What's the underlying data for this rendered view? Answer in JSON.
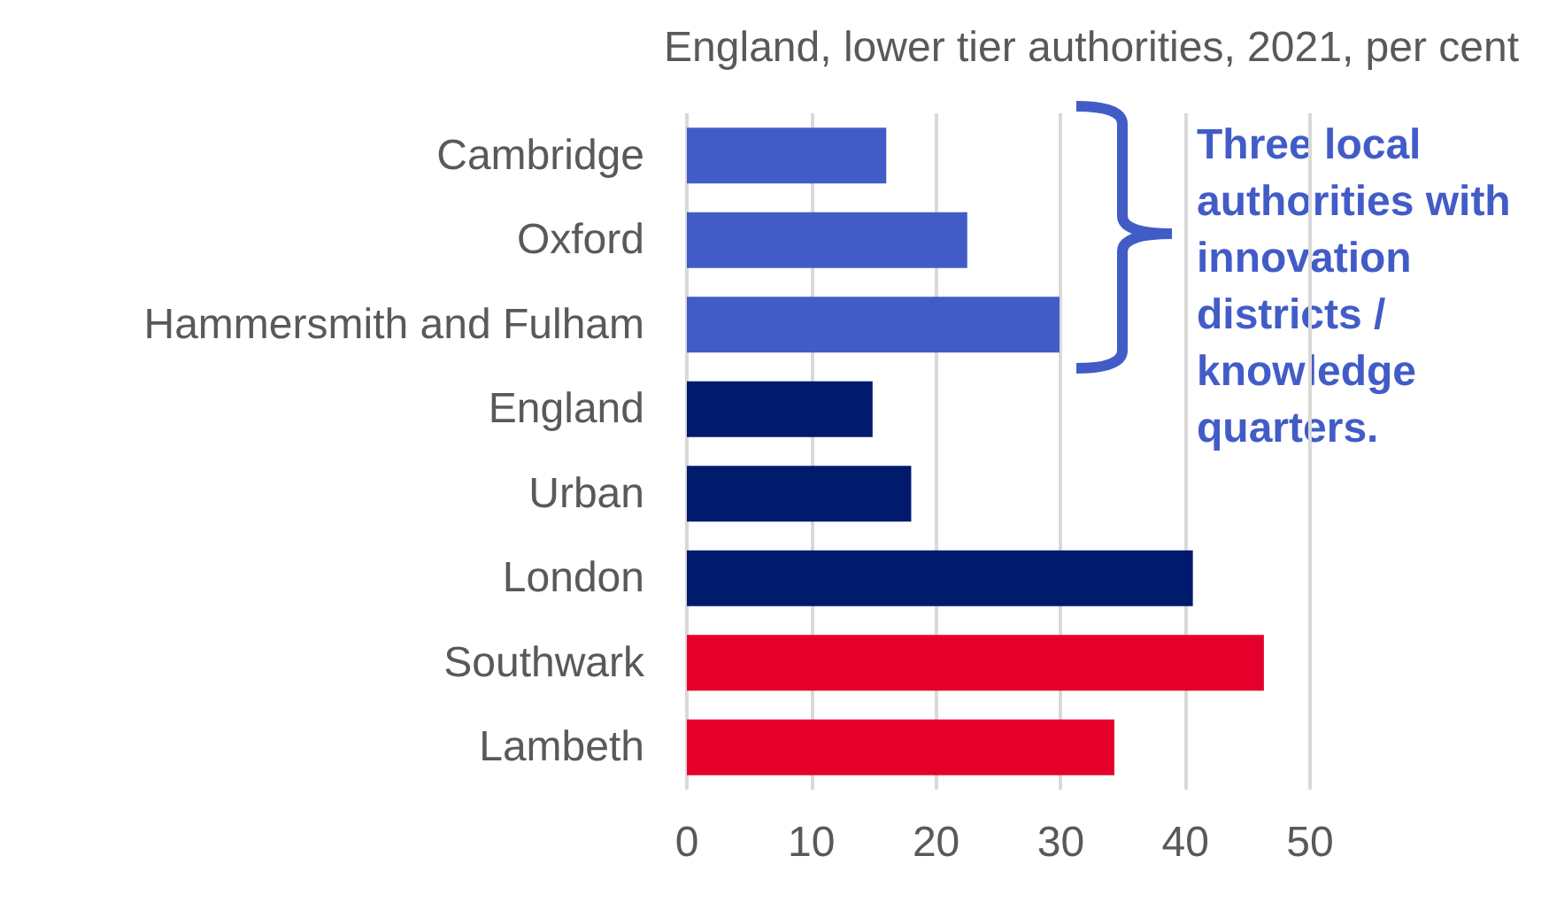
{
  "chart_data": {
    "type": "bar",
    "orientation": "horizontal",
    "title": "England, lower tier authorities, 2021, per cent",
    "categories": [
      "Cambridge",
      "Oxford",
      "Hammersmith and Fulham",
      "England",
      "Urban",
      "London",
      "Southwark",
      "Lambeth"
    ],
    "values": [
      16.0,
      22.5,
      29.9,
      14.9,
      18.0,
      40.6,
      46.3,
      34.3
    ],
    "colors": [
      "#425cc7",
      "#425cc7",
      "#425cc7",
      "#001a6e",
      "#001a6e",
      "#001a6e",
      "#e4002b",
      "#e4002b"
    ],
    "xlim": [
      0,
      50
    ],
    "xticks": [
      0,
      10,
      20,
      30,
      40,
      50
    ],
    "grid": "x",
    "annotations": [
      "Three local authorities with innovation districts / knowledge quarters."
    ]
  }
}
